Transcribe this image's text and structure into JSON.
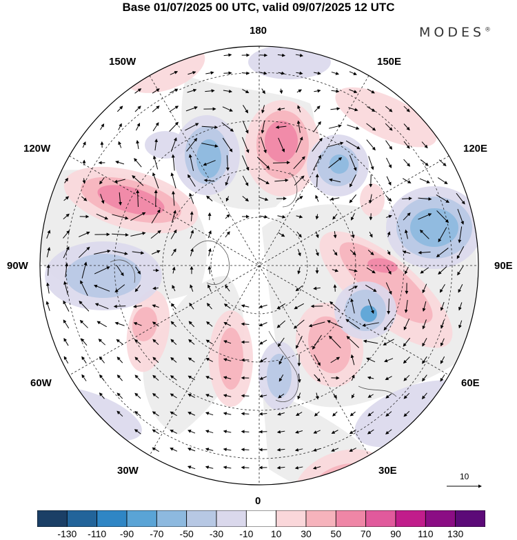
{
  "header": {
    "title": "Base 01/07/2025 00 UTC, valid 09/07/2025 12 UTC",
    "brand": "MODES",
    "brand_mark": "®"
  },
  "map": {
    "projection": "north-polar-stereographic",
    "longitude_labels": {
      "top": "180",
      "bottom": "0",
      "left": "90W",
      "right": "90E",
      "upper_left_1": "150W",
      "upper_left_2": "120W",
      "upper_right_1": "150E",
      "upper_right_2": "120E",
      "lower_left_1": "60W",
      "lower_left_2": "30W",
      "lower_right_1": "60E",
      "lower_right_2": "30E"
    },
    "colors": {
      "negative": [
        "#1b3f66",
        "#22649a",
        "#2f86c5",
        "#5aa4d6",
        "#8db9df",
        "#b7c8e4",
        "#dad8ec"
      ],
      "neutral": "#ffffff",
      "positive": [
        "#fad7da",
        "#f6b3bc",
        "#ef86a6",
        "#e15a9c",
        "#c11d8b",
        "#8b0d84",
        "#5c0a78"
      ],
      "land": "#ededed"
    },
    "wind_reference": {
      "value": "10"
    }
  },
  "colorbar": {
    "labels": [
      "-130",
      "-110",
      "-90",
      "-70",
      "-50",
      "-30",
      "-10",
      "10",
      "30",
      "50",
      "70",
      "90",
      "110",
      "130"
    ]
  }
}
